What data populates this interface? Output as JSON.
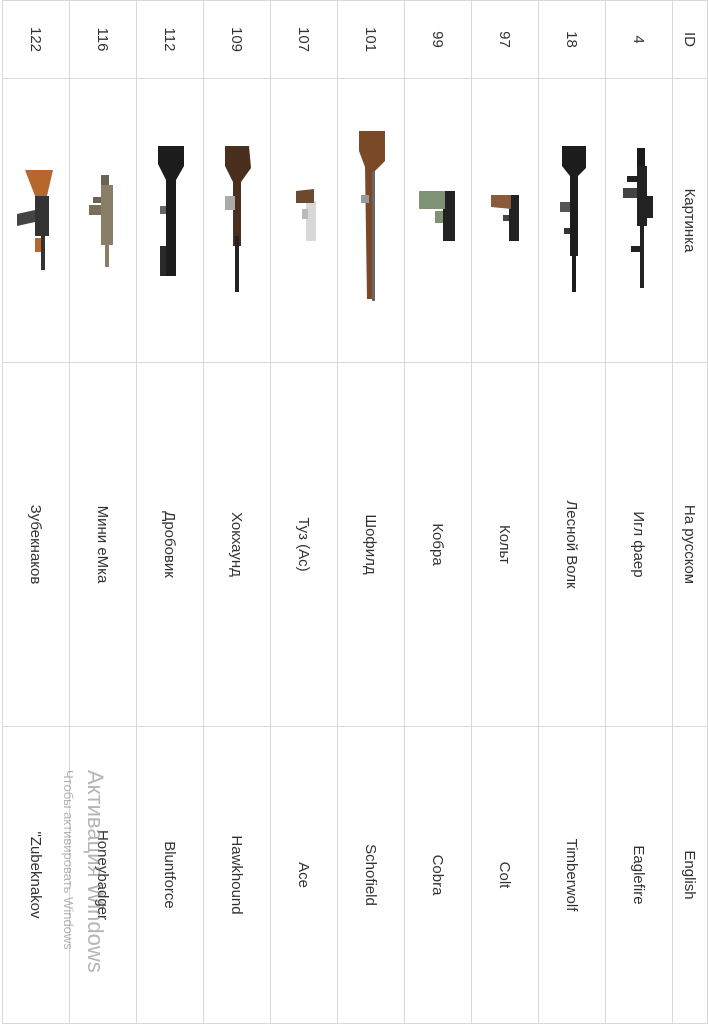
{
  "table": {
    "headers": {
      "id": "ID",
      "image": "Картинка",
      "russian": "На русском",
      "english": "English"
    },
    "rows": [
      {
        "id": "4",
        "ru": "Игл фаер",
        "en": "Eaglefire",
        "weapon_icon": "assault-rifle-icon"
      },
      {
        "id": "18",
        "ru": "Лесной Волк",
        "en": "Timberwolf",
        "weapon_icon": "sniper-rifle-icon"
      },
      {
        "id": "97",
        "ru": "Кольт",
        "en": "Colt",
        "weapon_icon": "pistol-icon"
      },
      {
        "id": "99",
        "ru": "Кобра",
        "en": "Cobra",
        "weapon_icon": "pistol-icon"
      },
      {
        "id": "101",
        "ru": "Шофилд",
        "en": "Schofield",
        "weapon_icon": "rifle-icon"
      },
      {
        "id": "107",
        "ru": "Туз (Ас)",
        "en": "Ace",
        "weapon_icon": "revolver-icon"
      },
      {
        "id": "109",
        "ru": "Хокхаунд",
        "en": "Hawkhound",
        "weapon_icon": "rifle-icon"
      },
      {
        "id": "112",
        "ru": "Дробовик",
        "en": "Bluntforce",
        "weapon_icon": "shotgun-icon"
      },
      {
        "id": "116",
        "ru": "Мини еМка",
        "en": "Honeybadger",
        "weapon_icon": "smg-icon"
      },
      {
        "id": "122",
        "ru": "Зубекнаков",
        "en": "\"Zubeknakov",
        "weapon_icon": "ak-rifle-icon"
      }
    ]
  },
  "watermark": {
    "title": "Активация Windows",
    "subtitle": "Чтобы активировать Windows"
  }
}
